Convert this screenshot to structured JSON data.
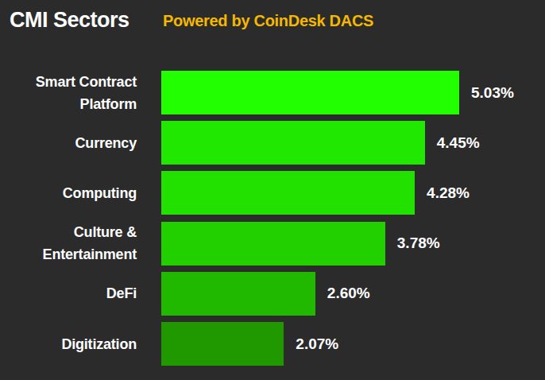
{
  "chart_data": {
    "type": "bar",
    "title": "CMI Sectors",
    "subtitle": "Powered by CoinDesk DACS",
    "orientation": "horizontal",
    "categories": [
      "Smart Contract Platform",
      "Currency",
      "Computing",
      "Culture & Entertainment",
      "DeFi",
      "Digitization"
    ],
    "values": [
      5.03,
      4.45,
      4.28,
      3.78,
      2.6,
      2.07
    ],
    "value_labels": [
      "5.03%",
      "4.45%",
      "4.28%",
      "3.78%",
      "2.60%",
      "2.07%"
    ],
    "colors": [
      "#22ff00",
      "#21e800",
      "#22e000",
      "#22d000",
      "#21b800",
      "#209800"
    ],
    "data_labels": true,
    "tick_labels": false,
    "grid": false
  }
}
